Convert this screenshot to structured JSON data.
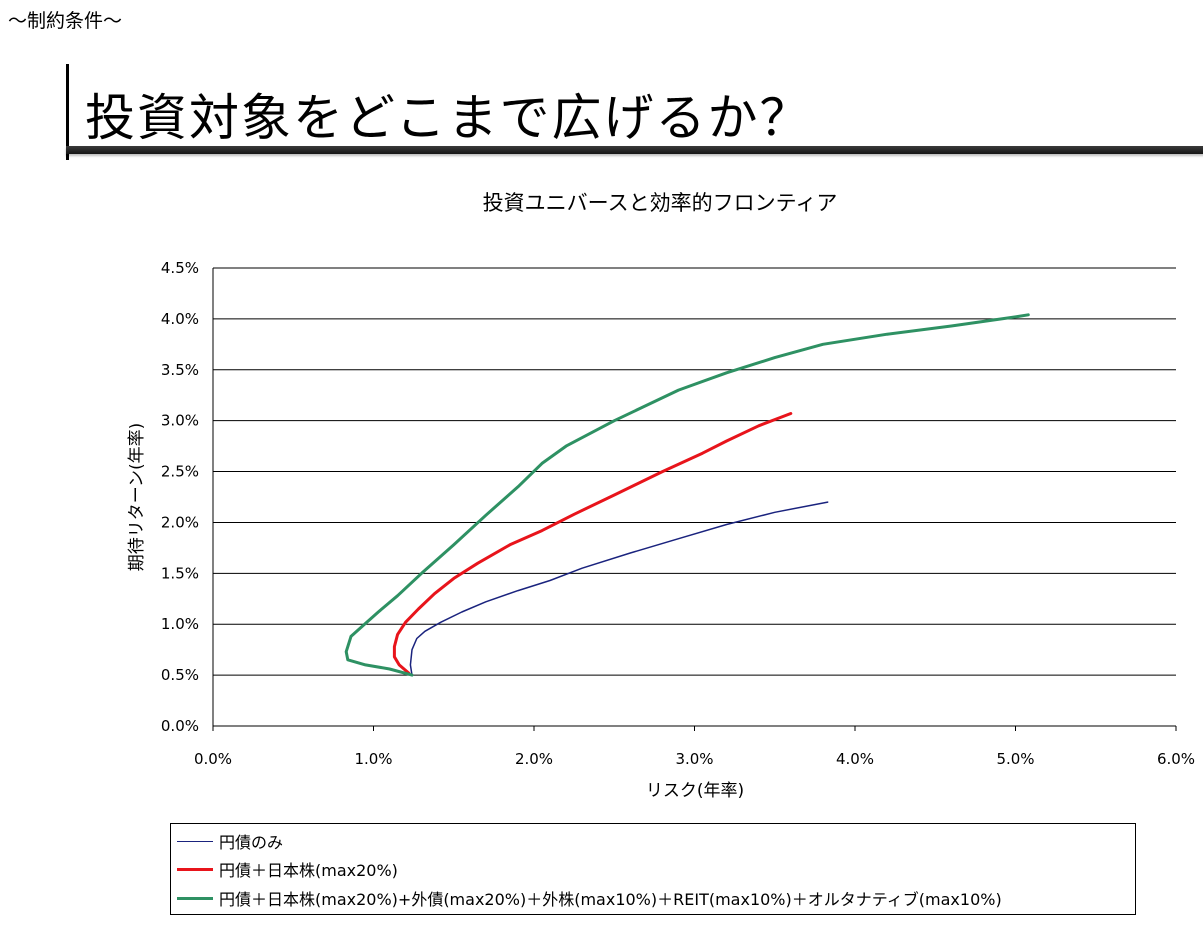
{
  "header": {
    "section_label": "～制約条件～",
    "slide_title": "投資対象をどこまで広げるか？"
  },
  "chart_data": {
    "type": "line",
    "title": "投資ユニバースと効率的フロンティア",
    "xlabel": "リスク(年率)",
    "ylabel": "期待リターン(年率)",
    "xlim": [
      0,
      6
    ],
    "ylim": [
      0,
      4.5
    ],
    "x_ticks": [
      "0.0%",
      "1.0%",
      "2.0%",
      "3.0%",
      "4.0%",
      "5.0%",
      "6.0%"
    ],
    "y_ticks": [
      "0.0%",
      "0.5%",
      "1.0%",
      "1.5%",
      "2.0%",
      "2.5%",
      "3.0%",
      "3.5%",
      "4.0%",
      "4.5%"
    ],
    "grid": "horizontal",
    "series": [
      {
        "name": "円債のみ",
        "color": "#1a237e",
        "width": 1.5,
        "x": [
          1.24,
          1.23,
          1.24,
          1.27,
          1.32,
          1.42,
          1.55,
          1.7,
          1.9,
          2.1,
          2.3,
          2.6,
          2.9,
          3.2,
          3.5,
          3.83
        ],
        "y": [
          0.5,
          0.6,
          0.75,
          0.86,
          0.93,
          1.02,
          1.12,
          1.22,
          1.33,
          1.43,
          1.55,
          1.7,
          1.84,
          1.98,
          2.1,
          2.2
        ]
      },
      {
        "name": "円債＋日本株(max20%)",
        "color": "#e8141b",
        "width": 3,
        "x": [
          1.22,
          1.16,
          1.13,
          1.13,
          1.15,
          1.2,
          1.28,
          1.38,
          1.5,
          1.65,
          1.85,
          2.05,
          2.25,
          2.5,
          2.8,
          3.05,
          3.2,
          3.4,
          3.6
        ],
        "y": [
          0.52,
          0.6,
          0.68,
          0.78,
          0.9,
          1.02,
          1.15,
          1.3,
          1.45,
          1.6,
          1.78,
          1.92,
          2.08,
          2.27,
          2.5,
          2.68,
          2.8,
          2.95,
          3.07
        ]
      },
      {
        "name": "円債＋日本株(max20%)+外債(max20%)＋外株(max10%)＋REIT(max10%)＋オルタナティブ(max10%)",
        "color": "#2e9163",
        "width": 3,
        "x": [
          1.24,
          1.1,
          0.95,
          0.84,
          0.83,
          0.86,
          0.93,
          1.03,
          1.15,
          1.3,
          1.5,
          1.7,
          1.9,
          2.05,
          2.2,
          2.5,
          2.9,
          3.2,
          3.5,
          3.8,
          4.2,
          4.6,
          5.0,
          5.08
        ],
        "y": [
          0.5,
          0.56,
          0.6,
          0.65,
          0.73,
          0.88,
          0.98,
          1.12,
          1.28,
          1.5,
          1.78,
          2.07,
          2.35,
          2.58,
          2.75,
          3.0,
          3.3,
          3.47,
          3.62,
          3.75,
          3.85,
          3.93,
          4.02,
          4.04
        ]
      }
    ]
  }
}
